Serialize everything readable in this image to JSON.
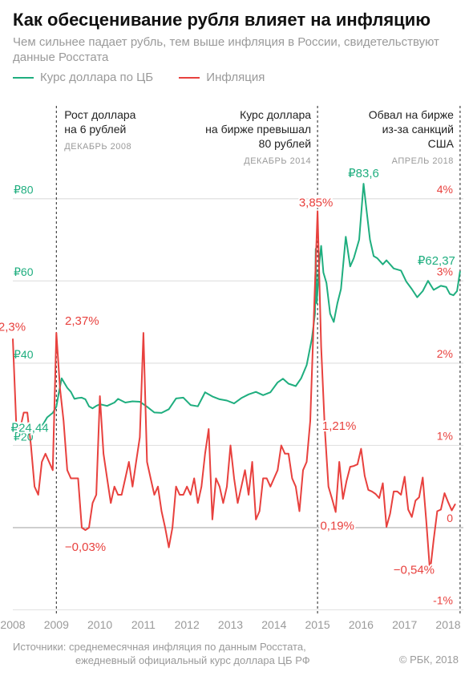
{
  "header": {
    "title": "Как обесценивание рубля влияет на инфляцию",
    "subtitle": "Чем сильнее падает рубль, тем выше инфляция в России, свидетельствуют данные Росстата"
  },
  "legend": [
    {
      "label": "Курс доллара по ЦБ",
      "color": "#1fae7f"
    },
    {
      "label": "Инфляция",
      "color": "#e8413e"
    }
  ],
  "footer": {
    "source_line1": "Источники: среднемесячная инфляция по данным Росстата,",
    "source_line2": "ежедневный официальный курс доллара ЦБ РФ",
    "copyright": "© РБК, 2018"
  },
  "chart_data": {
    "type": "line",
    "x_ticks": [
      "2008",
      "2009",
      "2010",
      "2011",
      "2012",
      "2013",
      "2014",
      "2015",
      "2016",
      "2017",
      "2018"
    ],
    "y_left": {
      "ticks": [
        "₽20",
        "₽40",
        "₽60",
        "₽80"
      ],
      "values": [
        20,
        40,
        60,
        80
      ],
      "color": "#1fae7f"
    },
    "y_right": {
      "ticks": [
        "-1%",
        "0",
        "1%",
        "2%",
        "3%",
        "4%"
      ],
      "values": [
        -1,
        0,
        1,
        2,
        3,
        4
      ],
      "color": "#e8413e"
    },
    "grid": true,
    "series": [
      {
        "name": "Курс доллара по ЦБ",
        "axis": "left",
        "color": "#1fae7f",
        "points": [
          [
            "2007-12-15",
            24.44
          ],
          [
            "2008-02-01",
            24.3
          ],
          [
            "2008-04-01",
            23.6
          ],
          [
            "2008-06-01",
            23.5
          ],
          [
            "2008-08-01",
            23.6
          ],
          [
            "2008-09-15",
            25.3
          ],
          [
            "2008-10-15",
            26.8
          ],
          [
            "2008-12-01",
            27.9
          ],
          [
            "2009-01-01",
            29.4
          ],
          [
            "2009-01-20",
            32.5
          ],
          [
            "2009-02-15",
            36.3
          ],
          [
            "2009-03-01",
            35.5
          ],
          [
            "2009-04-01",
            34.0
          ],
          [
            "2009-05-01",
            33.0
          ],
          [
            "2009-06-01",
            31.3
          ],
          [
            "2009-07-01",
            31.5
          ],
          [
            "2009-08-01",
            31.6
          ],
          [
            "2009-09-01",
            31.2
          ],
          [
            "2009-10-01",
            29.5
          ],
          [
            "2009-11-01",
            29.0
          ],
          [
            "2009-12-01",
            29.6
          ],
          [
            "2010-01-01",
            30.0
          ],
          [
            "2010-03-01",
            29.6
          ],
          [
            "2010-05-01",
            30.4
          ],
          [
            "2010-06-01",
            31.3
          ],
          [
            "2010-08-01",
            30.4
          ],
          [
            "2010-10-01",
            30.7
          ],
          [
            "2010-12-01",
            30.6
          ],
          [
            "2011-02-01",
            29.4
          ],
          [
            "2011-04-01",
            28.0
          ],
          [
            "2011-06-01",
            27.9
          ],
          [
            "2011-08-01",
            28.8
          ],
          [
            "2011-10-01",
            31.4
          ],
          [
            "2011-12-01",
            31.6
          ],
          [
            "2012-02-01",
            29.8
          ],
          [
            "2012-04-01",
            29.5
          ],
          [
            "2012-06-01",
            32.9
          ],
          [
            "2012-08-01",
            31.9
          ],
          [
            "2012-10-01",
            31.2
          ],
          [
            "2012-12-01",
            30.9
          ],
          [
            "2013-02-01",
            30.2
          ],
          [
            "2013-04-01",
            31.5
          ],
          [
            "2013-06-01",
            32.4
          ],
          [
            "2013-08-01",
            33.0
          ],
          [
            "2013-10-01",
            32.2
          ],
          [
            "2013-12-01",
            32.9
          ],
          [
            "2014-02-01",
            35.3
          ],
          [
            "2014-03-15",
            36.2
          ],
          [
            "2014-05-01",
            35.0
          ],
          [
            "2014-07-01",
            34.4
          ],
          [
            "2014-08-15",
            36.3
          ],
          [
            "2014-10-01",
            39.5
          ],
          [
            "2014-11-15",
            46.0
          ],
          [
            "2014-12-10",
            52.0
          ],
          [
            "2014-12-16",
            67.8
          ],
          [
            "2014-12-25",
            54.5
          ],
          [
            "2015-01-15",
            64.0
          ],
          [
            "2015-02-01",
            68.5
          ],
          [
            "2015-02-20",
            62.0
          ],
          [
            "2015-03-15",
            59.5
          ],
          [
            "2015-04-15",
            52.0
          ],
          [
            "2015-05-15",
            50.0
          ],
          [
            "2015-06-15",
            54.5
          ],
          [
            "2015-07-15",
            58.0
          ],
          [
            "2015-08-25",
            70.7
          ],
          [
            "2015-10-01",
            63.5
          ],
          [
            "2015-11-01",
            65.5
          ],
          [
            "2015-12-15",
            70.0
          ],
          [
            "2016-01-22",
            83.6
          ],
          [
            "2016-02-15",
            77.5
          ],
          [
            "2016-03-15",
            70.0
          ],
          [
            "2016-04-15",
            66.0
          ],
          [
            "2016-05-15",
            65.5
          ],
          [
            "2016-07-01",
            64.0
          ],
          [
            "2016-08-01",
            65.0
          ],
          [
            "2016-10-01",
            63.0
          ],
          [
            "2016-12-01",
            62.5
          ],
          [
            "2017-01-15",
            59.8
          ],
          [
            "2017-03-01",
            58.0
          ],
          [
            "2017-04-15",
            56.0
          ],
          [
            "2017-06-01",
            57.5
          ],
          [
            "2017-07-15",
            60.0
          ],
          [
            "2017-09-01",
            57.8
          ],
          [
            "2017-11-01",
            58.8
          ],
          [
            "2017-12-15",
            58.5
          ],
          [
            "2018-01-15",
            56.8
          ],
          [
            "2018-02-15",
            56.5
          ],
          [
            "2018-03-15",
            57.5
          ],
          [
            "2018-04-10",
            62.37
          ]
        ]
      },
      {
        "name": "Инфляция",
        "axis": "right",
        "color": "#e8413e",
        "points": [
          [
            "2008-01-01",
            2.3
          ],
          [
            "2008-02-01",
            1.2
          ],
          [
            "2008-03-01",
            1.2
          ],
          [
            "2008-04-01",
            1.4
          ],
          [
            "2008-05-01",
            1.4
          ],
          [
            "2008-06-01",
            1.0
          ],
          [
            "2008-07-01",
            0.5
          ],
          [
            "2008-08-01",
            0.4
          ],
          [
            "2008-09-01",
            0.8
          ],
          [
            "2008-10-01",
            0.9
          ],
          [
            "2008-11-01",
            0.8
          ],
          [
            "2008-12-01",
            0.7
          ],
          [
            "2009-01-01",
            2.37
          ],
          [
            "2009-02-01",
            1.7
          ],
          [
            "2009-03-01",
            1.3
          ],
          [
            "2009-04-01",
            0.7
          ],
          [
            "2009-05-01",
            0.6
          ],
          [
            "2009-06-01",
            0.6
          ],
          [
            "2009-07-01",
            0.6
          ],
          [
            "2009-08-01",
            0.0
          ],
          [
            "2009-09-01",
            -0.03
          ],
          [
            "2009-10-01",
            0.0
          ],
          [
            "2009-11-01",
            0.3
          ],
          [
            "2009-12-01",
            0.4
          ],
          [
            "2010-01-01",
            1.6
          ],
          [
            "2010-02-01",
            0.9
          ],
          [
            "2010-03-01",
            0.6
          ],
          [
            "2010-04-01",
            0.3
          ],
          [
            "2010-05-01",
            0.5
          ],
          [
            "2010-06-01",
            0.4
          ],
          [
            "2010-07-01",
            0.4
          ],
          [
            "2010-08-01",
            0.6
          ],
          [
            "2010-09-01",
            0.8
          ],
          [
            "2010-10-01",
            0.5
          ],
          [
            "2010-11-01",
            0.8
          ],
          [
            "2010-12-01",
            1.1
          ],
          [
            "2011-01-01",
            2.37
          ],
          [
            "2011-02-01",
            0.8
          ],
          [
            "2011-03-01",
            0.6
          ],
          [
            "2011-04-01",
            0.4
          ],
          [
            "2011-05-01",
            0.5
          ],
          [
            "2011-06-01",
            0.2
          ],
          [
            "2011-07-01",
            0.0
          ],
          [
            "2011-08-01",
            -0.24
          ],
          [
            "2011-09-01",
            0.0
          ],
          [
            "2011-10-01",
            0.5
          ],
          [
            "2011-11-01",
            0.4
          ],
          [
            "2011-12-01",
            0.4
          ],
          [
            "2012-01-01",
            0.5
          ],
          [
            "2012-02-01",
            0.4
          ],
          [
            "2012-03-01",
            0.6
          ],
          [
            "2012-04-01",
            0.3
          ],
          [
            "2012-05-01",
            0.5
          ],
          [
            "2012-06-01",
            0.9
          ],
          [
            "2012-07-01",
            1.2
          ],
          [
            "2012-08-01",
            0.1
          ],
          [
            "2012-09-01",
            0.6
          ],
          [
            "2012-10-01",
            0.5
          ],
          [
            "2012-11-01",
            0.3
          ],
          [
            "2012-12-01",
            0.5
          ],
          [
            "2013-01-01",
            1.0
          ],
          [
            "2013-02-01",
            0.6
          ],
          [
            "2013-03-01",
            0.3
          ],
          [
            "2013-04-01",
            0.5
          ],
          [
            "2013-05-01",
            0.7
          ],
          [
            "2013-06-01",
            0.4
          ],
          [
            "2013-07-01",
            0.8
          ],
          [
            "2013-08-01",
            0.1
          ],
          [
            "2013-09-01",
            0.2
          ],
          [
            "2013-10-01",
            0.6
          ],
          [
            "2013-11-01",
            0.6
          ],
          [
            "2013-12-01",
            0.5
          ],
          [
            "2014-01-01",
            0.6
          ],
          [
            "2014-02-01",
            0.7
          ],
          [
            "2014-03-01",
            1.0
          ],
          [
            "2014-04-01",
            0.9
          ],
          [
            "2014-05-01",
            0.9
          ],
          [
            "2014-06-01",
            0.6
          ],
          [
            "2014-07-01",
            0.5
          ],
          [
            "2014-08-01",
            0.2
          ],
          [
            "2014-09-01",
            0.7
          ],
          [
            "2014-10-01",
            0.8
          ],
          [
            "2014-11-01",
            1.3
          ],
          [
            "2014-12-01",
            2.6
          ],
          [
            "2015-01-01",
            3.85
          ],
          [
            "2015-02-01",
            2.2
          ],
          [
            "2015-03-01",
            1.21
          ],
          [
            "2015-04-01",
            0.5
          ],
          [
            "2015-05-01",
            0.35
          ],
          [
            "2015-06-01",
            0.19
          ],
          [
            "2015-07-01",
            0.8
          ],
          [
            "2015-08-01",
            0.35
          ],
          [
            "2015-09-01",
            0.57
          ],
          [
            "2015-10-01",
            0.74
          ],
          [
            "2015-11-01",
            0.75
          ],
          [
            "2015-12-01",
            0.77
          ],
          [
            "2016-01-01",
            0.96
          ],
          [
            "2016-02-01",
            0.63
          ],
          [
            "2016-03-01",
            0.46
          ],
          [
            "2016-04-01",
            0.44
          ],
          [
            "2016-05-01",
            0.41
          ],
          [
            "2016-06-01",
            0.36
          ],
          [
            "2016-07-01",
            0.54
          ],
          [
            "2016-08-01",
            0.01
          ],
          [
            "2016-09-01",
            0.17
          ],
          [
            "2016-10-01",
            0.44
          ],
          [
            "2016-11-01",
            0.44
          ],
          [
            "2016-12-01",
            0.4
          ],
          [
            "2017-01-01",
            0.62
          ],
          [
            "2017-02-01",
            0.22
          ],
          [
            "2017-03-01",
            0.13
          ],
          [
            "2017-04-01",
            0.33
          ],
          [
            "2017-05-01",
            0.37
          ],
          [
            "2017-06-01",
            0.61
          ],
          [
            "2017-07-01",
            0.07
          ],
          [
            "2017-08-01",
            -0.54
          ],
          [
            "2017-09-01",
            -0.15
          ],
          [
            "2017-10-01",
            0.2
          ],
          [
            "2017-11-01",
            0.22
          ],
          [
            "2017-12-01",
            0.42
          ],
          [
            "2018-01-01",
            0.31
          ],
          [
            "2018-02-01",
            0.21
          ],
          [
            "2018-03-01",
            0.29
          ]
        ]
      }
    ],
    "data_labels": [
      {
        "text": "2,3%",
        "series": "Инфляция",
        "date": "2008-01-01",
        "value": 2.3
      },
      {
        "text": "2,37%",
        "series": "Инфляция",
        "date": "2009-01-01",
        "value": 2.37
      },
      {
        "text": "−0,03%",
        "series": "Инфляция",
        "date": "2009-09-01",
        "value": -0.03
      },
      {
        "text": "3,85%",
        "series": "Инфляция",
        "date": "2015-01-01",
        "value": 3.85
      },
      {
        "text": "1,21%",
        "series": "Инфляция",
        "date": "2015-03-01",
        "value": 1.21
      },
      {
        "text": "0,19%",
        "series": "Инфляция",
        "date": "2015-06-01",
        "value": 0.19
      },
      {
        "text": "−0,54%",
        "series": "Инфляция",
        "date": "2017-08-01",
        "value": -0.54
      },
      {
        "text": "₽24,44",
        "series": "Курс доллара по ЦБ",
        "date": "2007-12-15",
        "value": 24.44
      },
      {
        "text": "₽83,6",
        "series": "Курс доллара по ЦБ",
        "date": "2016-01-22",
        "value": 83.6
      },
      {
        "text": "₽62,37",
        "series": "Курс доллара по ЦБ",
        "date": "2018-04-10",
        "value": 62.37
      }
    ],
    "annotations": [
      {
        "date": "2009-01-01",
        "lines": [
          "Рост доллара",
          "на 6 рублей"
        ],
        "caption": "ДЕКАБРЬ 2008",
        "align": "left"
      },
      {
        "date": "2015-01-01",
        "lines": [
          "Курс доллара",
          "на бирже превышал",
          "80 рублей"
        ],
        "caption": "ДЕКАБРЬ 2014",
        "align": "right"
      },
      {
        "date": "2018-04-10",
        "lines": [
          "Обвал на бирже",
          "из-за санкций",
          "США"
        ],
        "caption": "АПРЕЛЬ 2018",
        "align": "right"
      }
    ]
  }
}
